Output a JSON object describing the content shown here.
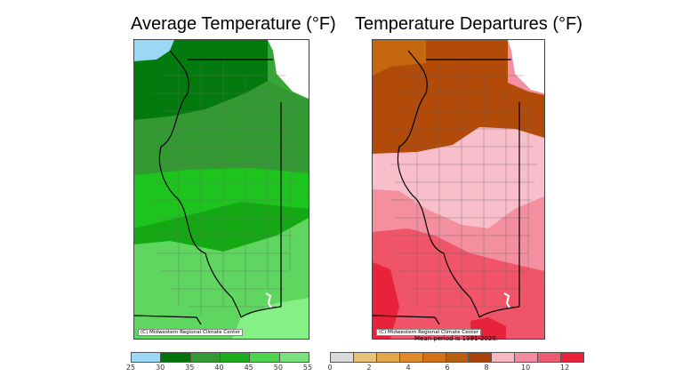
{
  "left_panel": {
    "title": "Average Temperature (°F)",
    "credit": "(C) Midwestern Regional Climate Center",
    "legend": {
      "ticks": [
        "25",
        "30",
        "35",
        "40",
        "45",
        "50",
        "55"
      ],
      "colors": [
        "#9ad8f6",
        "#00720b",
        "#339933",
        "#1bab1b",
        "#4fd44f",
        "#7ae07a"
      ]
    },
    "bands_north_to_south": [
      "#9ad8f6",
      "#037a0e",
      "#339933",
      "#1ec41e",
      "#14a814",
      "#5fd65f",
      "#85f085"
    ]
  },
  "right_panel": {
    "title": "Temperature Departures (°F)",
    "credit": "(C) Midwestern Regional Climate Center",
    "note": "Mean period is 1991-2020.",
    "legend": {
      "ticks": [
        "0",
        "2",
        "4",
        "6",
        "8",
        "10",
        "12"
      ],
      "colors": [
        "#d9d9d9",
        "#e8c178",
        "#e3a64b",
        "#e08b2a",
        "#d47016",
        "#b85e10",
        "#a8420b",
        "#f7b8c4",
        "#f48aa0",
        "#ee5a70",
        "#e8223a"
      ]
    },
    "bands_north_to_south": [
      "#b24a09",
      "#c4670f",
      "#f8bfcb",
      "#f48f9f",
      "#ef5468",
      "#e8223a"
    ]
  }
}
